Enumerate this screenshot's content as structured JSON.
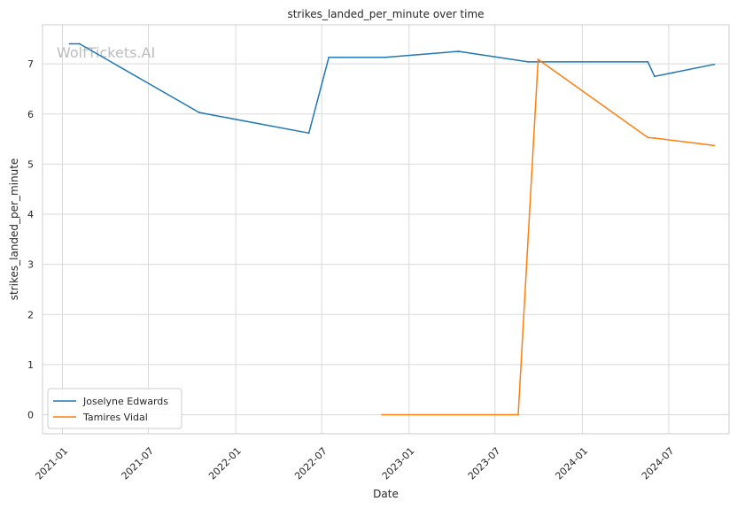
{
  "chart_data": {
    "type": "line",
    "title": "strikes_landed_per_minute over time",
    "xlabel": "Date",
    "ylabel": "strikes_landed_per_minute",
    "watermark": "WolfTickets.AI",
    "x_ticks": [
      "2021-01",
      "2021-07",
      "2022-01",
      "2022-07",
      "2023-01",
      "2023-07",
      "2024-01",
      "2024-07"
    ],
    "y_ticks": [
      0,
      1,
      2,
      3,
      4,
      5,
      6,
      7
    ],
    "xlim": [
      "2020-11-20",
      "2024-11-05"
    ],
    "ylim": [
      -0.38,
      7.78
    ],
    "grid": true,
    "legend_position": "lower-left",
    "colors": {
      "series_1": "#1f77b4",
      "series_2": "#ff7f0e",
      "grid": "#d9d9d9",
      "frame": "#cccccc"
    },
    "series": [
      {
        "name": "Joselyne Edwards",
        "points": [
          [
            "2021-01-16",
            7.4
          ],
          [
            "2021-02-06",
            7.4
          ],
          [
            "2021-10-16",
            6.03
          ],
          [
            "2022-06-04",
            5.62
          ],
          [
            "2022-07-16",
            7.13
          ],
          [
            "2022-11-12",
            7.13
          ],
          [
            "2023-04-15",
            7.25
          ],
          [
            "2023-09-09",
            7.04
          ],
          [
            "2024-05-18",
            7.04
          ],
          [
            "2024-06-01",
            6.75
          ],
          [
            "2024-10-05",
            6.99
          ]
        ]
      },
      {
        "name": "Tamires Vidal",
        "points": [
          [
            "2022-11-05",
            0.0
          ],
          [
            "2023-08-19",
            0.0
          ],
          [
            "2023-09-30",
            7.09
          ],
          [
            "2024-05-18",
            5.53
          ],
          [
            "2024-06-01",
            5.52
          ],
          [
            "2024-10-05",
            5.37
          ]
        ]
      }
    ]
  }
}
